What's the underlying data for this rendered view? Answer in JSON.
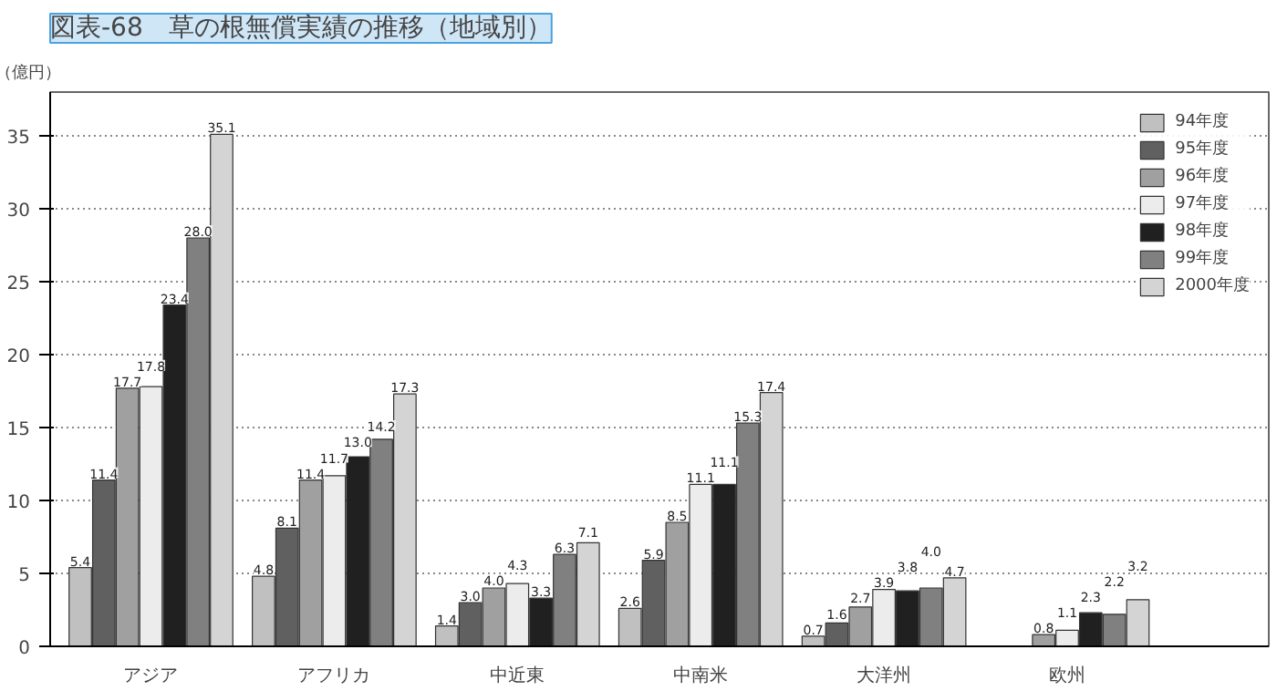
{
  "chart_data": {
    "type": "bar",
    "title": "図表-68　草の根無償実績の推移（地域別）",
    "ylabel": "（億円）",
    "categories": [
      "アジア",
      "アフリカ",
      "中近東",
      "中南米",
      "大洋州",
      "欧州"
    ],
    "series": [
      {
        "name": "94年度",
        "color": "#c0c0c0",
        "values": [
          5.4,
          4.8,
          1.4,
          2.6,
          0.7,
          null
        ],
        "value_labels": [
          "5.4",
          "4.8",
          "1.4",
          "2.6",
          "0.7",
          null
        ]
      },
      {
        "name": "95年度",
        "color": "#606060",
        "values": [
          11.4,
          8.1,
          3.0,
          5.9,
          1.6,
          null
        ],
        "value_labels": [
          "11.4",
          "8.1",
          "3.0",
          "5.9",
          "1.6",
          null
        ]
      },
      {
        "name": "96年度",
        "color": "#a0a0a0",
        "values": [
          17.7,
          11.4,
          4.0,
          8.5,
          2.7,
          0.8
        ],
        "value_labels": [
          "17.7",
          "11.4",
          "4.0",
          "8.5",
          "2.7",
          "0.8"
        ]
      },
      {
        "name": "97年度",
        "color": "#ececec",
        "values": [
          17.8,
          11.7,
          4.3,
          11.1,
          3.9,
          1.1
        ],
        "value_labels": [
          "17.8",
          "11.7",
          "4.3",
          "11.1",
          "3.9",
          "1.1"
        ]
      },
      {
        "name": "98年度",
        "color": "#202020",
        "values": [
          23.4,
          13.0,
          3.3,
          11.1,
          3.8,
          2.3
        ],
        "value_labels": [
          "23.4",
          "13.0",
          "3.3",
          "11.1",
          "3.8",
          "2.3"
        ]
      },
      {
        "name": "99年度",
        "color": "#808080",
        "values": [
          28.0,
          14.2,
          6.3,
          15.3,
          4.0,
          2.2
        ],
        "value_labels": [
          "28.0",
          "14.2",
          "6.3",
          "15.3",
          "4.0",
          "2.2"
        ]
      },
      {
        "name": "2000年度",
        "color": "#d4d4d4",
        "values": [
          35.1,
          17.3,
          7.1,
          17.4,
          4.7,
          3.2
        ],
        "value_labels": [
          "35.1",
          "17.3",
          "7.1",
          "17.4",
          "4.7",
          "3.2"
        ]
      }
    ],
    "ylim": [
      0,
      38
    ],
    "yticks": [
      0,
      5,
      10,
      15,
      20,
      25,
      30,
      35
    ],
    "grid": "y",
    "legend": "top right"
  }
}
